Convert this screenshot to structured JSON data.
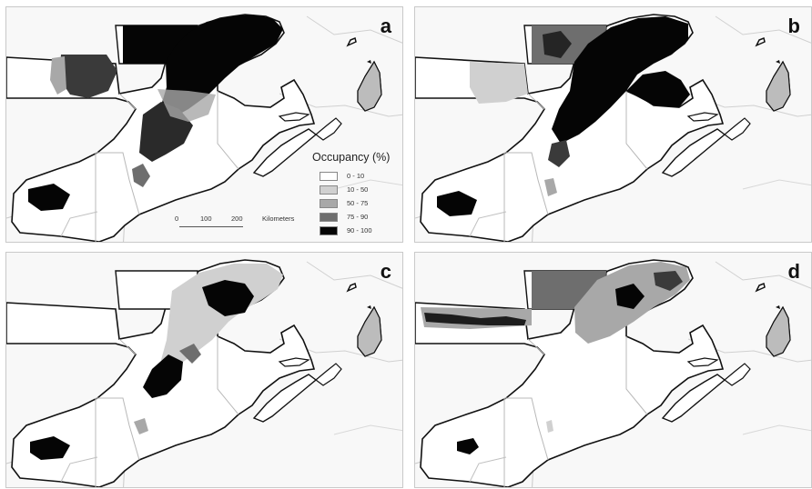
{
  "colors": {
    "background": "#f8f8f8",
    "land": "#ffffff",
    "outline": "#111111",
    "border": "#b8b8b8",
    "class_0_10": "#ffffff",
    "class_10_50": "#d0d0d0",
    "class_50_75": "#a8a8a8",
    "class_75_90": "#6e6e6e",
    "class_90_100": "#050505"
  },
  "panels": [
    {
      "label": "a"
    },
    {
      "label": "b"
    },
    {
      "label": "c"
    },
    {
      "label": "d"
    }
  ],
  "legend": {
    "title": "Occupancy (%)",
    "classes": [
      {
        "label": "0 - 10",
        "color": "#ffffff"
      },
      {
        "label": "10 - 50",
        "color": "#d0d0d0"
      },
      {
        "label": "50 - 75",
        "color": "#a8a8a8"
      },
      {
        "label": "75 - 90",
        "color": "#6e6e6e"
      },
      {
        "label": "90 - 100",
        "color": "#050505"
      }
    ]
  },
  "scalebar": {
    "ticks": [
      "0",
      "100",
      "200"
    ],
    "unit": "Kilometers"
  }
}
